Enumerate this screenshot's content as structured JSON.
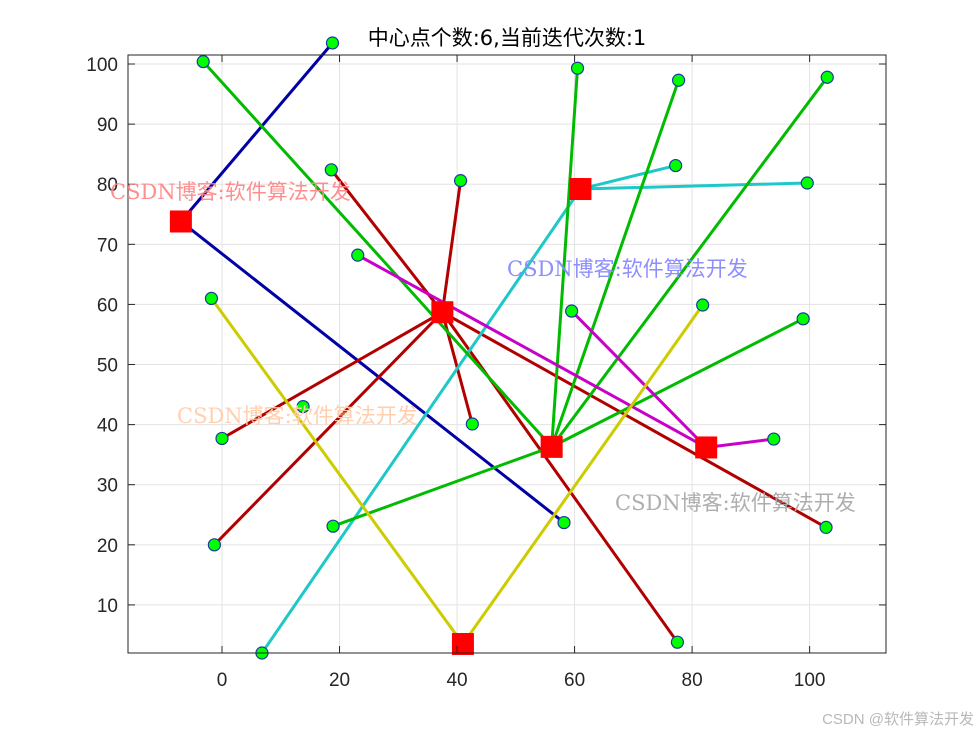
{
  "chart_data": {
    "type": "scatter",
    "title": "中心点个数:6,当前迭代次数:1",
    "xlabel": "",
    "ylabel": "",
    "xlim": [
      -16,
      113
    ],
    "ylim": [
      2,
      101.5
    ],
    "xticks": [
      0,
      20,
      40,
      60,
      80,
      100
    ],
    "yticks": [
      10,
      20,
      30,
      40,
      50,
      60,
      70,
      80,
      90,
      100
    ],
    "grid": true,
    "centers": [
      {
        "x": -7,
        "y": 73.8
      },
      {
        "x": 37.5,
        "y": 58.7
      },
      {
        "x": 61,
        "y": 79.2
      },
      {
        "x": 56.1,
        "y": 36.3
      },
      {
        "x": 82.4,
        "y": 36.2
      },
      {
        "x": 41,
        "y": 3.5
      }
    ],
    "clusters": [
      {
        "center": 0,
        "color": "#0000a6",
        "points": [
          {
            "x": 18.8,
            "y": 103.5
          },
          {
            "x": 58.2,
            "y": 23.7
          }
        ]
      },
      {
        "center": 1,
        "color": "#b20000",
        "points": [
          {
            "x": 18.6,
            "y": 82.4
          },
          {
            "x": 40.6,
            "y": 80.6
          },
          {
            "x": 42.6,
            "y": 40.1
          },
          {
            "x": 0,
            "y": 37.7
          },
          {
            "x": -1.3,
            "y": 20
          },
          {
            "x": 77.5,
            "y": 3.8
          },
          {
            "x": 102.8,
            "y": 22.9
          }
        ]
      },
      {
        "center": 2,
        "color": "#1ec8c8",
        "points": [
          {
            "x": 77.2,
            "y": 83.1
          },
          {
            "x": 99.6,
            "y": 80.2
          },
          {
            "x": 6.8,
            "y": 2
          }
        ]
      },
      {
        "center": 3,
        "color": "#00bb00",
        "points": [
          {
            "x": -3.2,
            "y": 100.4
          },
          {
            "x": 60.5,
            "y": 99.3
          },
          {
            "x": 77.7,
            "y": 97.3
          },
          {
            "x": 103,
            "y": 97.8
          },
          {
            "x": 98.9,
            "y": 57.6
          },
          {
            "x": 18.9,
            "y": 23.1
          }
        ]
      },
      {
        "center": 4,
        "color": "#c800c8",
        "points": [
          {
            "x": 23.1,
            "y": 68.2
          },
          {
            "x": 59.5,
            "y": 58.9
          },
          {
            "x": 93.9,
            "y": 37.6
          }
        ]
      },
      {
        "center": 5,
        "color": "#cccc00",
        "points": [
          {
            "x": -1.8,
            "y": 61
          },
          {
            "x": 81.8,
            "y": 59.9
          }
        ]
      }
    ],
    "stray_points": [
      {
        "x": 13.8,
        "y": 43
      }
    ],
    "point_color": "#00ff00",
    "point_edge": "#1a3a9e",
    "center_color": "#ff0000",
    "watermarks": [
      {
        "text": "CSDN博客:软件算法开发",
        "color": "#ff8888"
      },
      {
        "text": "CSDN博客:软件算法开发",
        "color": "#8888ff"
      },
      {
        "text": "CSDN博客:软件算法开发",
        "color": "#ffccaa"
      },
      {
        "text": "CSDN博客:软件算法开发",
        "color": "#aaaaaa"
      }
    ]
  },
  "footer": {
    "credit": "CSDN @软件算法开发"
  }
}
